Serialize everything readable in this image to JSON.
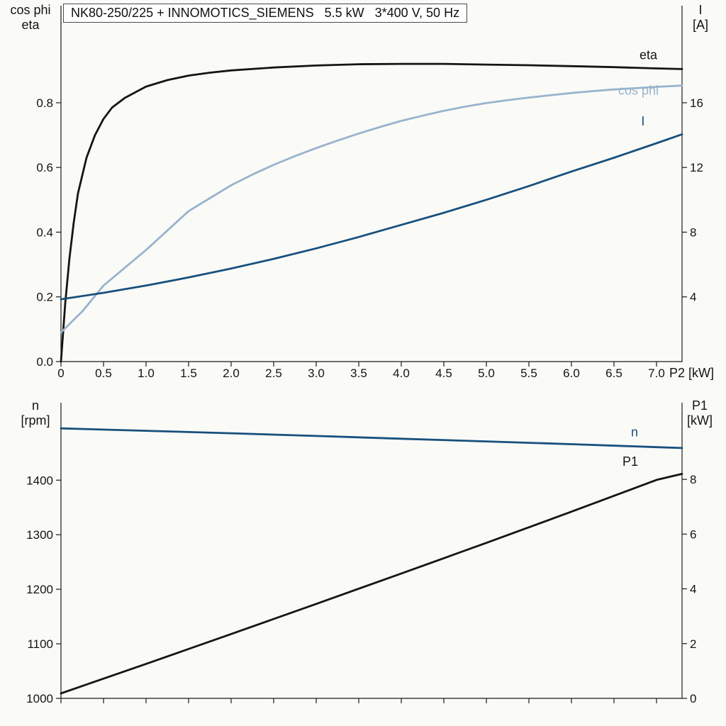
{
  "title": "NK80-250/225 + INNOMOTICS_SIEMENS   5.5 kW   3*400 V, 50 Hz",
  "colors": {
    "black": "#151515",
    "steelblue": "#98b4ce",
    "darkblue": "#17507e",
    "axis": "#1a1a1a",
    "tick_text": "#141414"
  },
  "chart_data": [
    {
      "type": "line",
      "title": "NK80-250/225 + INNOMOTICS_SIEMENS   5.5 kW   3*400 V, 50 Hz",
      "x": {
        "axis_label": "P2 [kW]",
        "min": 0,
        "max": 7.3,
        "ticks": [
          0,
          0.5,
          1.0,
          1.5,
          2.0,
          2.5,
          3.0,
          3.5,
          4.0,
          4.5,
          5.0,
          5.5,
          6.0,
          6.5,
          7.0
        ],
        "tick_labels": [
          "0",
          "0.5",
          "1.0",
          "1.5",
          "2.0",
          "2.5",
          "3.0",
          "3.5",
          "4.0",
          "4.5",
          "5.0",
          "5.5",
          "6.0",
          "6.5",
          "7.0"
        ]
      },
      "y_left": {
        "title": "cos phi\neta",
        "min": 0,
        "max": 1.1,
        "ticks": [
          0.0,
          0.2,
          0.4,
          0.6,
          0.8
        ],
        "tick_labels": [
          "0.0",
          "0.2",
          "0.4",
          "0.6",
          "0.8"
        ]
      },
      "y_right": {
        "title": "I\n[A]",
        "min": 0,
        "max": 22,
        "ticks": [
          4,
          8,
          12,
          16
        ],
        "tick_labels": [
          "4",
          "8",
          "12",
          "16"
        ]
      },
      "series": [
        {
          "name": "eta",
          "axis": "left",
          "color_key": "black",
          "label": "eta",
          "label_at": [
            6.8,
            0.935
          ],
          "points": [
            [
              0,
              0
            ],
            [
              0.05,
              0.18
            ],
            [
              0.1,
              0.32
            ],
            [
              0.15,
              0.43
            ],
            [
              0.2,
              0.52
            ],
            [
              0.3,
              0.63
            ],
            [
              0.4,
              0.7
            ],
            [
              0.5,
              0.75
            ],
            [
              0.6,
              0.785
            ],
            [
              0.75,
              0.815
            ],
            [
              1,
              0.85
            ],
            [
              1.25,
              0.87
            ],
            [
              1.5,
              0.884
            ],
            [
              1.75,
              0.893
            ],
            [
              2,
              0.9
            ],
            [
              2.5,
              0.909
            ],
            [
              3,
              0.915
            ],
            [
              3.5,
              0.919
            ],
            [
              4,
              0.92
            ],
            [
              4.5,
              0.92
            ],
            [
              5,
              0.918
            ],
            [
              5.5,
              0.916
            ],
            [
              6,
              0.913
            ],
            [
              6.5,
              0.91
            ],
            [
              7,
              0.906
            ],
            [
              7.3,
              0.904
            ]
          ]
        },
        {
          "name": "cos phi",
          "axis": "left",
          "color_key": "steelblue",
          "label": "cos phi",
          "label_at": [
            6.55,
            0.825
          ],
          "points": [
            [
              0,
              0.09
            ],
            [
              0.25,
              0.155
            ],
            [
              0.5,
              0.235
            ],
            [
              0.75,
              0.29
            ],
            [
              1,
              0.345
            ],
            [
              1.25,
              0.405
            ],
            [
              1.5,
              0.465
            ],
            [
              1.75,
              0.505
            ],
            [
              2,
              0.545
            ],
            [
              2.25,
              0.578
            ],
            [
              2.5,
              0.608
            ],
            [
              2.75,
              0.635
            ],
            [
              3,
              0.66
            ],
            [
              3.25,
              0.683
            ],
            [
              3.5,
              0.705
            ],
            [
              3.75,
              0.725
            ],
            [
              4,
              0.744
            ],
            [
              4.25,
              0.76
            ],
            [
              4.5,
              0.775
            ],
            [
              4.75,
              0.788
            ],
            [
              5,
              0.799
            ],
            [
              5.25,
              0.808
            ],
            [
              5.5,
              0.816
            ],
            [
              5.75,
              0.823
            ],
            [
              6,
              0.83
            ],
            [
              6.25,
              0.836
            ],
            [
              6.5,
              0.841
            ],
            [
              6.75,
              0.845
            ],
            [
              7,
              0.849
            ],
            [
              7.3,
              0.853
            ]
          ]
        },
        {
          "name": "I",
          "axis": "right",
          "color_key": "darkblue",
          "label": "I",
          "label_at": [
            6.82,
            14.6
          ],
          "points": [
            [
              0,
              3.85
            ],
            [
              0.5,
              4.25
            ],
            [
              1,
              4.7
            ],
            [
              1.5,
              5.2
            ],
            [
              2,
              5.75
            ],
            [
              2.5,
              6.35
            ],
            [
              3,
              7
            ],
            [
              3.5,
              7.7
            ],
            [
              4,
              8.45
            ],
            [
              4.5,
              9.2
            ],
            [
              5,
              10
            ],
            [
              5.5,
              10.85
            ],
            [
              6,
              11.75
            ],
            [
              6.5,
              12.6
            ],
            [
              7,
              13.5
            ],
            [
              7.3,
              14.05
            ]
          ]
        }
      ]
    },
    {
      "type": "line",
      "x": {
        "min": 0,
        "max": 7.3,
        "ticks": [
          0,
          0.5,
          1.0,
          1.5,
          2.0,
          2.5,
          3.0,
          3.5,
          4.0,
          4.5,
          5.0,
          5.5,
          6.0,
          6.5,
          7.0
        ],
        "tick_labels": []
      },
      "y_left": {
        "title": "n\n[rpm]",
        "min": 1000,
        "max": 1542,
        "ticks": [
          1000,
          1100,
          1200,
          1300,
          1400
        ],
        "tick_labels": [
          "1000",
          "1100",
          "1200",
          "1300",
          "1400"
        ]
      },
      "y_right": {
        "title": "P1\n[kW]",
        "min": 0,
        "max": 10.8,
        "ticks": [
          0,
          2,
          4,
          6,
          8
        ],
        "tick_labels": [
          "0",
          "2",
          "4",
          "6",
          "8"
        ]
      },
      "series": [
        {
          "name": "n",
          "axis": "left",
          "color_key": "darkblue",
          "label": "n",
          "label_at": [
            6.7,
            1480
          ],
          "points": [
            [
              0,
              1495
            ],
            [
              1,
              1490.5
            ],
            [
              2,
              1486
            ],
            [
              3,
              1481
            ],
            [
              4,
              1476
            ],
            [
              5,
              1471
            ],
            [
              6,
              1466
            ],
            [
              7,
              1460.5
            ],
            [
              7.3,
              1459
            ]
          ]
        },
        {
          "name": "P1",
          "axis": "right",
          "color_key": "black",
          "label": "P1",
          "label_at": [
            6.6,
            8.5
          ],
          "points": [
            [
              0,
              0.18
            ],
            [
              0.5,
              0.72
            ],
            [
              1,
              1.26
            ],
            [
              2,
              2.35
            ],
            [
              3,
              3.45
            ],
            [
              4,
              4.56
            ],
            [
              5,
              5.68
            ],
            [
              6,
              6.82
            ],
            [
              7,
              7.98
            ],
            [
              7.3,
              8.2
            ]
          ]
        }
      ]
    }
  ]
}
